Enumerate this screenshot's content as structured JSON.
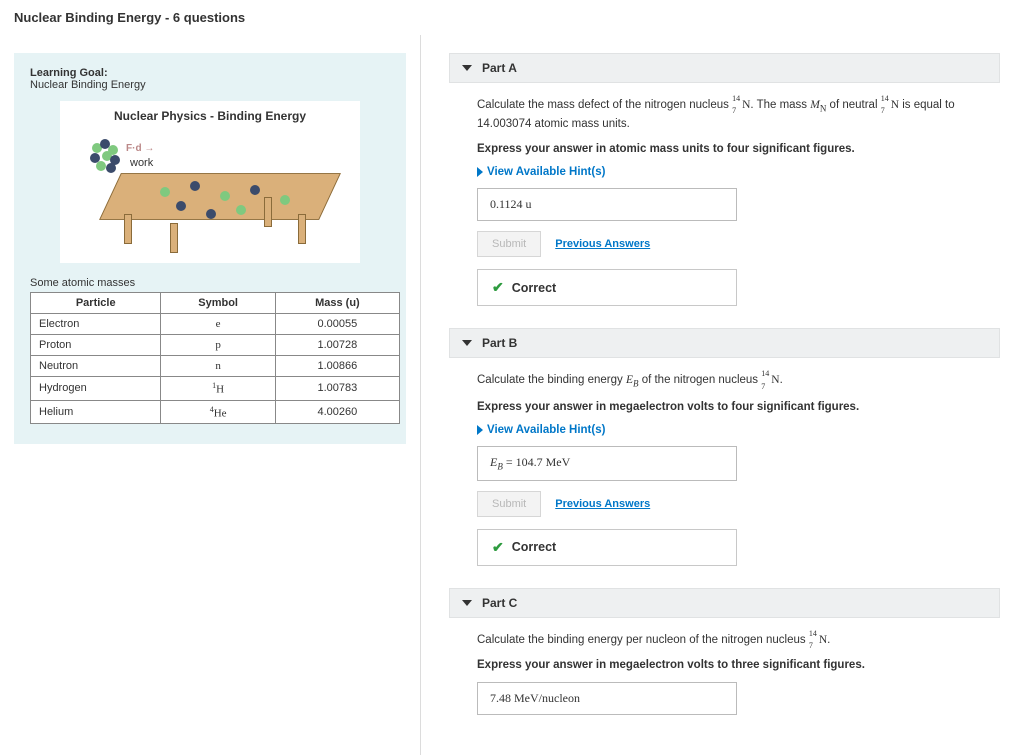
{
  "page": {
    "title": "Nuclear Binding Energy - 6 questions"
  },
  "info": {
    "learning_goal_label": "Learning Goal:",
    "learning_goal_text": "Nuclear Binding Energy",
    "video_title": "Nuclear Physics - Binding Energy",
    "work_label": "work",
    "fd_label": "F·d",
    "table_caption": "Some atomic masses",
    "table_headers": {
      "particle": "Particle",
      "symbol": "Symbol",
      "mass": "Mass (u)"
    },
    "rows": [
      {
        "particle": "Electron",
        "symbol": "e",
        "mass": "0.00055"
      },
      {
        "particle": "Proton",
        "symbol": "p",
        "mass": "1.00728"
      },
      {
        "particle": "Neutron",
        "symbol": "n",
        "mass": "1.00866"
      },
      {
        "particle": "Hydrogen",
        "symbol_pre": "1",
        "symbol": "H",
        "mass": "1.00783"
      },
      {
        "particle": "Helium",
        "symbol_pre": "4",
        "symbol": "He",
        "mass": "4.00260"
      }
    ]
  },
  "parts": {
    "a": {
      "title": "Part A",
      "prompt_pre": "Calculate the mass defect of the nitrogen nucleus ",
      "isotope": {
        "a": "14",
        "z": "7",
        "el": "N"
      },
      "prompt_mid1": ". The mass ",
      "mn_sym": "M",
      "mn_sub": "N",
      "prompt_mid2": " of neutral ",
      "prompt_post": " is equal to 14.003074 atomic mass units.",
      "instruction": "Express your answer in atomic mass units to four significant figures.",
      "hints": "View Available Hint(s)",
      "answer": "0.1124  u",
      "submit": "Submit",
      "prev": "Previous Answers",
      "correct": "Correct"
    },
    "b": {
      "title": "Part B",
      "prompt_pre": "Calculate the binding energy ",
      "eb_sym": "E",
      "eb_sub": "B",
      "prompt_mid": " of the nitrogen nucleus ",
      "isotope": {
        "a": "14",
        "z": "7",
        "el": "N"
      },
      "prompt_post": ".",
      "instruction": "Express your answer in megaelectron volts to four significant figures.",
      "hints": "View Available Hint(s)",
      "answer_pre": "E",
      "answer_sub": "B",
      "answer_eq": " =  104.7  MeV",
      "submit": "Submit",
      "prev": "Previous Answers",
      "correct": "Correct"
    },
    "c": {
      "title": "Part C",
      "prompt_pre": "Calculate the binding energy per nucleon of the nitrogen nucleus ",
      "isotope": {
        "a": "14",
        "z": "7",
        "el": "N"
      },
      "prompt_post": ".",
      "instruction": "Express your answer in megaelectron volts to three significant figures.",
      "answer": "7.48  MeV/nucleon"
    }
  }
}
